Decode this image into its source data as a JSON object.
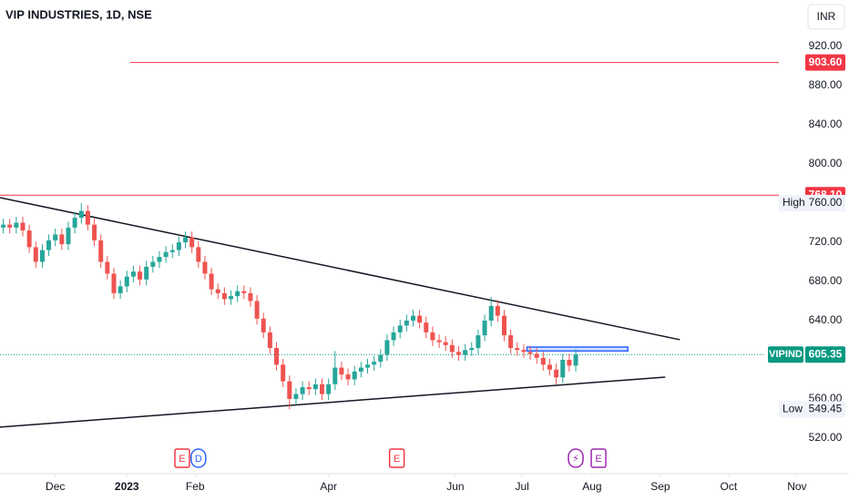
{
  "chart_data": {
    "type": "candlestick",
    "title": "VIP INDUSTRIES, 1D, NSE",
    "currency": "INR",
    "up_color": "#26a69a",
    "down_color": "#ef5350",
    "xlim": [
      0,
      261
    ],
    "ylim": [
      483.7,
      967.4
    ],
    "xticks": [
      {
        "value": 17,
        "label": "Dec"
      },
      {
        "value": 39,
        "label": "2023"
      },
      {
        "value": 60,
        "label": "Feb"
      },
      {
        "value": 101,
        "label": "Apr"
      },
      {
        "value": 140,
        "label": "Jun"
      },
      {
        "value": 160.5,
        "label": "Jul"
      },
      {
        "value": 182,
        "label": "Aug"
      },
      {
        "value": 203,
        "label": "Sep"
      },
      {
        "value": 224,
        "label": "Oct"
      },
      {
        "value": 245,
        "label": "Nov"
      }
    ],
    "yticks": [
      {
        "value": 920,
        "label": "920.00"
      },
      {
        "value": 880,
        "label": "880.00"
      },
      {
        "value": 840,
        "label": "840.00"
      },
      {
        "value": 800,
        "label": "800.00"
      },
      {
        "value": 720,
        "label": "720.00"
      },
      {
        "value": 680,
        "label": "680.00"
      },
      {
        "value": 640,
        "label": "640.00"
      },
      {
        "value": 560,
        "label": "560.00"
      },
      {
        "value": 520,
        "label": "520.00"
      }
    ],
    "x": [
      1,
      3,
      5,
      7,
      9,
      11,
      13,
      15,
      17,
      19,
      21,
      23,
      25,
      27,
      29,
      31,
      33,
      35,
      37,
      39,
      41,
      43,
      45,
      47,
      49,
      51,
      53,
      55,
      57,
      59,
      61,
      63,
      65,
      67,
      69,
      71,
      73,
      75,
      77,
      79,
      81,
      83,
      85,
      87,
      89,
      91,
      93,
      95,
      97,
      99,
      101,
      103,
      105,
      107,
      109,
      111,
      113,
      115,
      117,
      119,
      121,
      123,
      125,
      127,
      129,
      131,
      133,
      135,
      137,
      139,
      141,
      143,
      145,
      147,
      149,
      151,
      153,
      155,
      157,
      159,
      161,
      163,
      165,
      167,
      169,
      171,
      173,
      175,
      177
    ],
    "open": [
      735,
      738,
      735,
      740,
      732,
      715,
      700,
      712,
      722,
      728,
      718,
      735,
      745,
      752,
      738,
      722,
      700,
      688,
      668,
      675,
      685,
      690,
      682,
      695,
      700,
      705,
      710,
      712,
      720,
      725,
      715,
      700,
      688,
      672,
      668,
      662,
      665,
      670,
      668,
      660,
      642,
      628,
      612,
      595,
      578,
      560,
      565,
      572,
      570,
      575,
      565,
      575,
      592,
      585,
      580,
      588,
      592,
      595,
      598,
      605,
      620,
      628,
      635,
      640,
      645,
      638,
      628,
      620,
      618,
      615,
      608,
      605,
      610,
      612,
      625,
      640,
      655,
      645,
      625,
      612,
      610,
      608,
      606,
      602,
      595,
      590,
      582,
      600,
      594
    ],
    "high": [
      744,
      744,
      746,
      746,
      738,
      721,
      718,
      728,
      734,
      734,
      741,
      751,
      760,
      758,
      744,
      728,
      706,
      694,
      681,
      691,
      696,
      696,
      701,
      706,
      711,
      716,
      718,
      726,
      731,
      731,
      721,
      706,
      694,
      678,
      674,
      671,
      676,
      676,
      674,
      666,
      648,
      634,
      618,
      601,
      584,
      571,
      578,
      578,
      581,
      581,
      581,
      609,
      598,
      591,
      594,
      598,
      601,
      604,
      611,
      626,
      634,
      641,
      646,
      651,
      651,
      644,
      634,
      626,
      624,
      621,
      614,
      616,
      618,
      631,
      646,
      664,
      661,
      651,
      631,
      618,
      616,
      614,
      612,
      608,
      601,
      596,
      606,
      606,
      611
    ],
    "low": [
      729,
      729,
      729,
      726,
      709,
      694,
      694,
      706,
      716,
      712,
      712,
      729,
      739,
      732,
      716,
      694,
      682,
      662,
      662,
      669,
      679,
      676,
      676,
      689,
      694,
      699,
      704,
      706,
      714,
      709,
      694,
      682,
      666,
      662,
      656,
      656,
      659,
      662,
      654,
      636,
      622,
      606,
      589,
      572,
      549.45,
      554,
      559,
      564,
      564,
      559,
      559,
      569,
      579,
      574,
      574,
      582,
      586,
      589,
      592,
      599,
      614,
      622,
      629,
      634,
      632,
      622,
      614,
      612,
      609,
      602,
      599,
      599,
      604,
      606,
      619,
      634,
      639,
      619,
      606,
      604,
      602,
      600,
      596,
      589,
      584,
      575,
      576,
      588,
      588
    ],
    "close": [
      738,
      735,
      740,
      732,
      715,
      700,
      712,
      722,
      728,
      718,
      735,
      745,
      752,
      738,
      722,
      700,
      688,
      668,
      675,
      685,
      690,
      682,
      695,
      700,
      705,
      710,
      712,
      720,
      725,
      715,
      700,
      688,
      672,
      668,
      662,
      665,
      670,
      668,
      660,
      642,
      628,
      612,
      595,
      578,
      560,
      565,
      572,
      570,
      575,
      565,
      575,
      592,
      585,
      580,
      588,
      592,
      595,
      598,
      605,
      620,
      628,
      635,
      640,
      645,
      638,
      628,
      620,
      618,
      615,
      608,
      605,
      610,
      612,
      625,
      640,
      655,
      645,
      625,
      612,
      610,
      608,
      606,
      602,
      595,
      590,
      582,
      600,
      594,
      605.35
    ],
    "levels": [
      {
        "value": 903.6,
        "label": "903.60",
        "color": "#f23645",
        "x_start": 40
      },
      {
        "value": 768.1,
        "label": "768.10",
        "color": "#f23645",
        "x_start": 0
      }
    ],
    "last_price": {
      "symbol": "VIPIND",
      "value": 605.35,
      "label": "605.35",
      "color": "#089981"
    },
    "high_marker": {
      "label": "High",
      "value": 760,
      "value_label": "760.00"
    },
    "low_marker": {
      "label": "Low",
      "value": 549.45,
      "value_label": "549.45"
    },
    "trendlines": [
      {
        "x": [
          0,
          209
        ],
        "y": [
          765.6,
          620.5
        ],
        "color": "#131722"
      },
      {
        "x": [
          0,
          204.5
        ],
        "y": [
          531.2,
          582.3
        ],
        "color": "#131722"
      }
    ],
    "rectangle": {
      "x": [
        162,
        193
      ],
      "y": [
        613,
        609
      ],
      "color": "#2962ff"
    },
    "events": [
      {
        "label": "E",
        "x": 56,
        "color": "#f23645"
      },
      {
        "label": "D",
        "x": 61,
        "color": "#2962ff"
      },
      {
        "label": "E",
        "x": 122,
        "color": "#f23645"
      },
      {
        "label": "⚡",
        "x": 177,
        "color": "#9c27b0"
      },
      {
        "label": "E",
        "x": 184,
        "color": "#9c27b0"
      }
    ]
  }
}
